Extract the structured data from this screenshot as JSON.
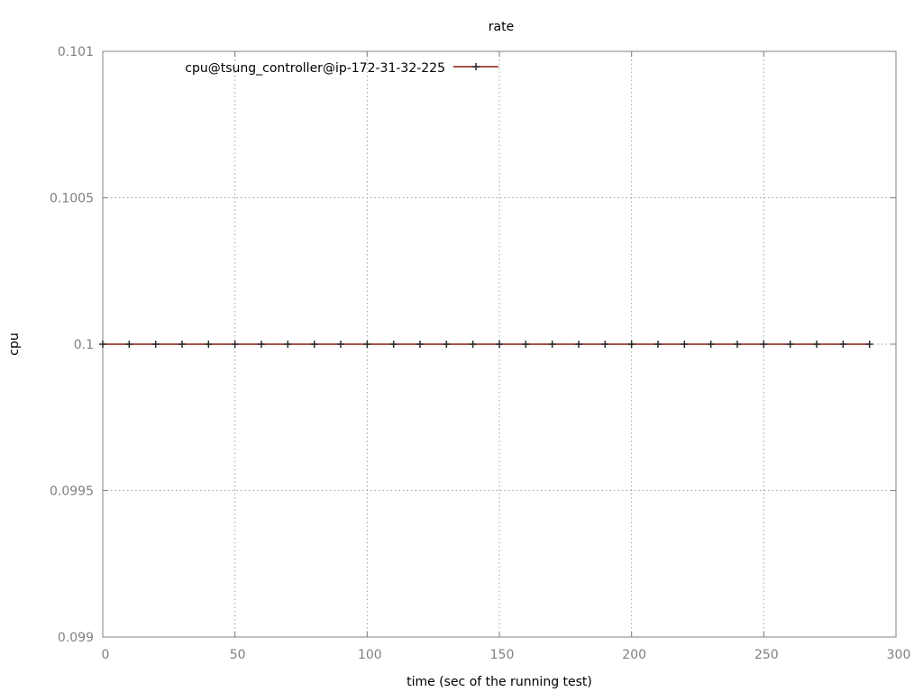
{
  "chart_data": {
    "type": "line",
    "title": "rate",
    "xlabel": "time (sec of the running test)",
    "ylabel": "cpu",
    "xlim": [
      0,
      300
    ],
    "ylim": [
      0.099,
      0.101
    ],
    "xticks": [
      0,
      50,
      100,
      150,
      200,
      250,
      300
    ],
    "xtick_labels": [
      "0",
      "50",
      "100",
      "150",
      "200",
      "250",
      "300"
    ],
    "yticks": [
      0.099,
      0.0995,
      0.1,
      0.1005,
      0.101
    ],
    "ytick_labels": [
      "0.099",
      "0.0995",
      "0.1",
      "0.1005",
      "0.101"
    ],
    "grid": true,
    "legend_position": "top-left",
    "series": [
      {
        "name": "cpu@tsung_controller@ip-172-31-32-225",
        "color": "#8b1a0e",
        "marker": "plus",
        "x": [
          0,
          10,
          20,
          30,
          40,
          50,
          60,
          70,
          80,
          90,
          100,
          110,
          120,
          130,
          140,
          150,
          160,
          170,
          180,
          190,
          200,
          210,
          220,
          230,
          240,
          250,
          260,
          270,
          280,
          290
        ],
        "y": [
          0.1,
          0.1,
          0.1,
          0.1,
          0.1,
          0.1,
          0.1,
          0.1,
          0.1,
          0.1,
          0.1,
          0.1,
          0.1,
          0.1,
          0.1,
          0.1,
          0.1,
          0.1,
          0.1,
          0.1,
          0.1,
          0.1,
          0.1,
          0.1,
          0.1,
          0.1,
          0.1,
          0.1,
          0.1,
          0.1
        ]
      }
    ]
  }
}
